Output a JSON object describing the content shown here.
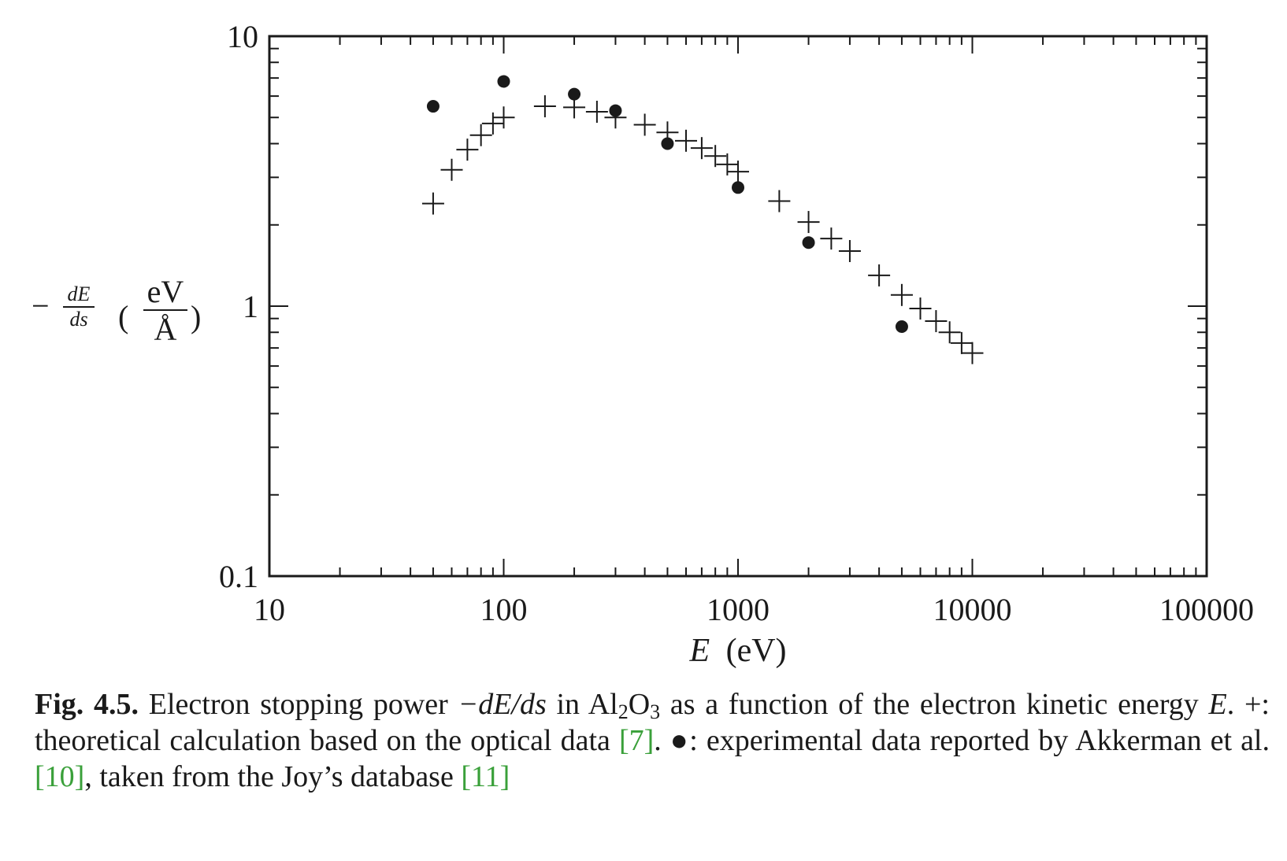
{
  "chart_data": {
    "type": "scatter",
    "xscale": "log",
    "yscale": "log",
    "xlim": [
      10,
      100000
    ],
    "ylim": [
      0.1,
      10
    ],
    "x_ticks": [
      10,
      100,
      1000,
      10000,
      100000
    ],
    "x_tick_labels": [
      "10",
      "100",
      "1000",
      "10000",
      "100000"
    ],
    "y_ticks": [
      0.1,
      1,
      10
    ],
    "y_tick_labels": [
      "0.1",
      "1",
      "10"
    ],
    "xlabel": {
      "var": "E",
      "unit": "(eV)"
    },
    "ylabel": {
      "prefix": "−",
      "num": "dE",
      "den": "ds",
      "unit_num": "eV",
      "unit_den": "Å"
    },
    "grid": false,
    "series": [
      {
        "marker": "plus",
        "x": [
          50,
          60,
          70,
          80,
          90,
          100,
          150,
          200,
          250,
          300,
          400,
          500,
          600,
          700,
          800,
          900,
          1000,
          1500,
          2000,
          2500,
          3000,
          4000,
          5000,
          6000,
          7000,
          8000,
          9000,
          10000
        ],
        "y": [
          2.4,
          3.2,
          3.8,
          4.3,
          4.75,
          5.0,
          5.5,
          5.45,
          5.25,
          5.0,
          4.7,
          4.4,
          4.1,
          3.85,
          3.6,
          3.35,
          3.15,
          2.45,
          2.05,
          1.78,
          1.6,
          1.3,
          1.1,
          0.98,
          0.88,
          0.8,
          0.73,
          0.67
        ]
      },
      {
        "marker": "dot",
        "x": [
          50,
          100,
          200,
          300,
          500,
          1000,
          2000,
          5000
        ],
        "y": [
          5.5,
          6.8,
          6.1,
          5.3,
          4.0,
          2.75,
          1.72,
          0.84
        ]
      }
    ]
  },
  "caption": {
    "label": "Fig. 4.5.",
    "t1": " Electron stopping power ",
    "m1": "−dE/ds",
    "t2": " in Al",
    "sub1": "2",
    "t3": "O",
    "sub2": "3",
    "t4": " as a function of the electron kinetic energy ",
    "m2": "E",
    "t5": ". +: theoretical calculation based on the optical data ",
    "ref1": "[7]",
    "t6": ". ●: experimental data reported by Akkerman et al. ",
    "ref2": "[10]",
    "t7": ", taken from the Joy’s database ",
    "ref3": "[11]"
  }
}
